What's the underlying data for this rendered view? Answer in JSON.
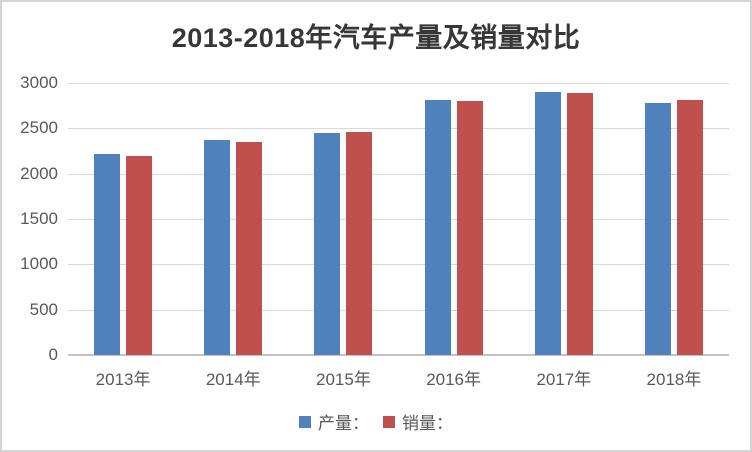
{
  "chart_data": {
    "type": "bar",
    "title": "2013-2018年汽车产量及销量对比",
    "categories": [
      "2013年",
      "2014年",
      "2015年",
      "2016年",
      "2017年",
      "2018年"
    ],
    "series": [
      {
        "name": "产量：",
        "color": "#4F81BD",
        "values": [
          2212,
          2372,
          2450,
          2812,
          2902,
          2781
        ]
      },
      {
        "name": "销量：",
        "color": "#C0504D",
        "values": [
          2198,
          2349,
          2460,
          2803,
          2888,
          2808
        ]
      }
    ],
    "xlabel": "",
    "ylabel": "",
    "ylim": [
      0,
      3000
    ],
    "yticks": [
      0,
      500,
      1000,
      1500,
      2000,
      2500,
      3000
    ],
    "grid": true,
    "legend_position": "bottom"
  },
  "colors": {
    "production_bar": "#4F81BD",
    "sales_bar": "#C0504D",
    "gridline": "#D9D9D9",
    "axis_line": "#C3C3C3",
    "tick_label": "#595959",
    "title_text": "#373737",
    "frame_border": "#D4D4D4",
    "background": "#FFFFFF"
  }
}
